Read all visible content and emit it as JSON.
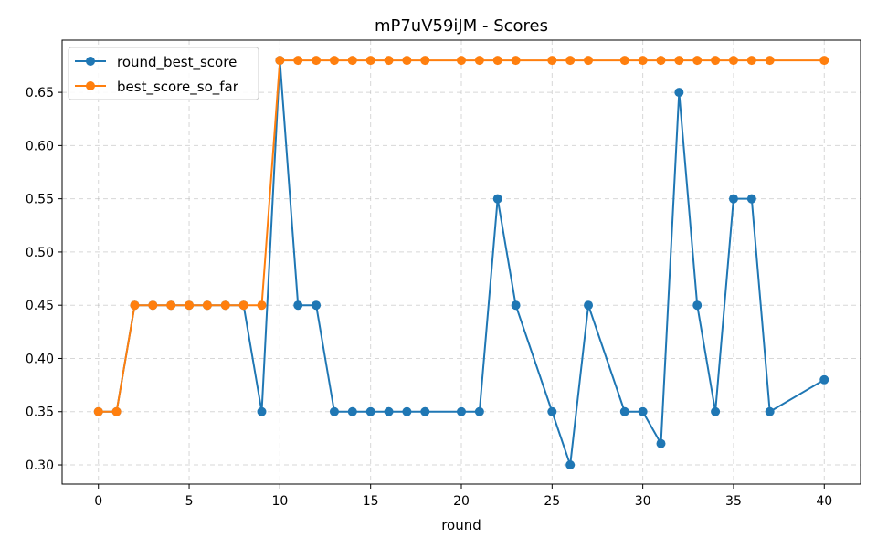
{
  "chart_data": {
    "type": "line",
    "title": "mP7uV59iJM - Scores",
    "xlabel": "round",
    "ylabel": "",
    "xlim": [
      -2,
      42
    ],
    "ylim": [
      0.282,
      0.699
    ],
    "xticks": [
      0,
      5,
      10,
      15,
      20,
      25,
      30,
      35,
      40
    ],
    "yticks": [
      0.3,
      0.35,
      0.4,
      0.45,
      0.5,
      0.55,
      0.6,
      0.65
    ],
    "ytick_labels": [
      "0.30",
      "0.35",
      "0.40",
      "0.45",
      "0.50",
      "0.55",
      "0.60",
      "0.65"
    ],
    "grid": true,
    "legend_position": "top-left",
    "x": [
      0,
      1,
      2,
      3,
      4,
      5,
      6,
      7,
      8,
      9,
      10,
      11,
      12,
      13,
      14,
      15,
      16,
      17,
      18,
      20,
      21,
      22,
      23,
      25,
      26,
      27,
      29,
      30,
      31,
      32,
      33,
      34,
      35,
      36,
      37,
      40
    ],
    "series": [
      {
        "name": "round_best_score",
        "color": "#1f77b4",
        "values": [
          0.35,
          0.35,
          0.45,
          0.45,
          0.45,
          0.45,
          0.45,
          0.45,
          0.45,
          0.35,
          0.68,
          0.45,
          0.45,
          0.35,
          0.35,
          0.35,
          0.35,
          0.35,
          0.35,
          0.35,
          0.35,
          0.55,
          0.45,
          0.35,
          0.3,
          0.45,
          0.35,
          0.35,
          0.32,
          0.65,
          0.45,
          0.35,
          0.55,
          0.55,
          0.35,
          0.38
        ]
      },
      {
        "name": "best_score_so_far",
        "color": "#ff7f0e",
        "values": [
          0.35,
          0.35,
          0.45,
          0.45,
          0.45,
          0.45,
          0.45,
          0.45,
          0.45,
          0.45,
          0.68,
          0.68,
          0.68,
          0.68,
          0.68,
          0.68,
          0.68,
          0.68,
          0.68,
          0.68,
          0.68,
          0.68,
          0.68,
          0.68,
          0.68,
          0.68,
          0.68,
          0.68,
          0.68,
          0.68,
          0.68,
          0.68,
          0.68,
          0.68,
          0.68,
          0.68
        ]
      }
    ]
  }
}
